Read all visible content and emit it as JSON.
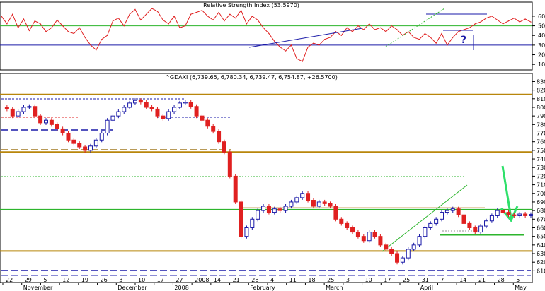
{
  "chart_data": [
    {
      "type": "line",
      "title": "Relative Strength Index (53.5970)",
      "ylim": [
        5,
        68
      ],
      "yticks": [
        "10",
        "20",
        "30",
        "40",
        "50",
        "60"
      ],
      "horizontal_lines": [
        {
          "value": 50,
          "color": "#2db52d"
        },
        {
          "value": 30,
          "color": "#1a1aa8"
        }
      ],
      "annotation": "?",
      "series": [
        {
          "color": "#e02020",
          "x": [
            0,
            2,
            4,
            6,
            8,
            10,
            12,
            14,
            16,
            18,
            20,
            22,
            24,
            26,
            28,
            30,
            32,
            34,
            36,
            38,
            40,
            42,
            44,
            46,
            48,
            50,
            52,
            54,
            56,
            58,
            60,
            62,
            64,
            66,
            68,
            70,
            72,
            74,
            76,
            78,
            80,
            82,
            84,
            86,
            88,
            90,
            92,
            94,
            96,
            98,
            100,
            102,
            104,
            106,
            108,
            110,
            112,
            114,
            116,
            118,
            120,
            122,
            124,
            126,
            128,
            130,
            132,
            134,
            136,
            138,
            140,
            142,
            144,
            146,
            148,
            150,
            152,
            154,
            156,
            158,
            160,
            162,
            164,
            166,
            168,
            170,
            172,
            174,
            176,
            178,
            180,
            182,
            184,
            186,
            188,
            190
          ],
          "values": [
            60,
            52,
            62,
            48,
            57,
            45,
            55,
            52,
            44,
            48,
            56,
            50,
            44,
            42,
            48,
            38,
            30,
            25,
            36,
            40,
            55,
            58,
            50,
            62,
            67,
            56,
            62,
            68,
            65,
            56,
            52,
            60,
            48,
            50,
            62,
            64,
            66,
            60,
            56,
            64,
            55,
            62,
            58,
            66,
            52,
            60,
            56,
            48,
            42,
            34,
            28,
            24,
            30,
            16,
            13,
            28,
            32,
            30,
            36,
            38,
            44,
            40,
            48,
            44,
            50,
            46,
            52,
            46,
            48,
            44,
            50,
            46,
            40,
            44,
            38,
            36,
            42,
            38,
            32,
            42,
            30,
            38,
            44,
            46,
            48,
            52,
            54,
            58,
            60,
            56,
            52,
            55,
            58,
            54,
            57,
            54
          ]
        }
      ]
    },
    {
      "type": "bar",
      "title": "^GDAXI (6,739.65, 6,780.34, 6,739.47, 6,754.87, +26.5700)",
      "ylim": [
        5980,
        8320
      ],
      "yticks": [
        "6100",
        "6200",
        "6300",
        "6400",
        "6500",
        "6600",
        "6700",
        "6800",
        "6900",
        "7000",
        "7100",
        "7200",
        "7300",
        "7400",
        "7500",
        "7600",
        "7700",
        "7800",
        "7900",
        "8000",
        "8100",
        "8200",
        "8300"
      ],
      "categories": [
        "22",
        "29",
        "5",
        "12",
        "19",
        "26",
        "3",
        "10",
        "17",
        "27",
        "2008",
        "14",
        "21",
        "28",
        "4",
        "11",
        "18",
        "25",
        "3",
        "10",
        "17",
        "25",
        "31",
        "7",
        "14",
        "21",
        "28",
        "5"
      ],
      "months": [
        "November",
        "December",
        "2008",
        "February",
        "March",
        "April",
        "May"
      ],
      "horizontal_lines": [
        {
          "value": 8150,
          "color": "#b8860b"
        },
        {
          "value": 7480,
          "color": "#b8860b"
        },
        {
          "value": 6810,
          "color": "#2db52d"
        },
        {
          "value": 6330,
          "color": "#b8860b"
        },
        {
          "value": 6520,
          "color": "#2db52d"
        }
      ],
      "series": [
        {
          "name": "",
          "x": [
            2,
            4,
            6,
            8,
            10,
            12,
            14,
            16,
            18,
            20,
            22,
            24,
            26,
            28,
            30,
            32,
            34,
            36,
            38,
            40,
            42,
            44,
            46,
            48,
            50,
            52,
            54,
            56,
            58,
            60,
            62,
            64,
            66,
            68,
            70,
            72,
            74,
            76,
            78,
            80,
            82,
            84,
            86,
            88,
            90,
            92,
            94,
            96,
            98,
            100,
            102,
            104,
            106,
            108,
            110,
            112,
            114,
            116,
            118,
            120,
            122,
            124,
            126,
            128,
            130,
            132,
            134,
            136,
            138,
            140,
            142,
            144,
            146,
            148,
            150,
            152,
            154,
            156,
            158,
            160,
            162,
            164,
            166,
            168,
            170,
            172,
            174,
            176,
            178,
            180,
            182,
            184,
            186,
            188,
            190
          ],
          "open": [
            8000,
            7980,
            7900,
            7950,
            8000,
            8010,
            7900,
            7820,
            7850,
            7800,
            7750,
            7700,
            7620,
            7580,
            7540,
            7500,
            7550,
            7620,
            7700,
            7850,
            7900,
            7950,
            8000,
            8050,
            8080,
            8060,
            8000,
            7980,
            7900,
            7870,
            7950,
            8000,
            8050,
            8060,
            8010,
            7900,
            7850,
            7780,
            7720,
            7600,
            7480,
            7200,
            6900,
            6500,
            6600,
            6700,
            6800,
            6850,
            6780,
            6820,
            6800,
            6850,
            6900,
            6950,
            7000,
            6920,
            6850,
            6900,
            6880,
            6850,
            6700,
            6650,
            6600,
            6550,
            6500,
            6450,
            6550,
            6500,
            6400,
            6350,
            6300,
            6200,
            6250,
            6350,
            6400,
            6500,
            6600,
            6650,
            6700,
            6780,
            6800,
            6820,
            6750,
            6650,
            6600,
            6550,
            6620,
            6680,
            6740,
            6800,
            6780,
            6750,
            6740,
            6760,
            6740
          ],
          "close": [
            7980,
            7900,
            7950,
            8000,
            8010,
            7900,
            7820,
            7850,
            7800,
            7750,
            7700,
            7620,
            7580,
            7540,
            7500,
            7550,
            7620,
            7700,
            7850,
            7900,
            7950,
            8000,
            8050,
            8080,
            8060,
            8000,
            7980,
            7900,
            7870,
            7950,
            8000,
            8050,
            8060,
            8010,
            7900,
            7850,
            7780,
            7720,
            7600,
            7480,
            7200,
            6900,
            6500,
            6600,
            6700,
            6800,
            6850,
            6780,
            6820,
            6800,
            6850,
            6900,
            6950,
            7000,
            6920,
            6850,
            6900,
            6880,
            6850,
            6700,
            6650,
            6600,
            6550,
            6500,
            6450,
            6550,
            6500,
            6400,
            6350,
            6300,
            6200,
            6250,
            6350,
            6400,
            6500,
            6600,
            6650,
            6700,
            6780,
            6800,
            6820,
            6750,
            6650,
            6600,
            6550,
            6620,
            6680,
            6740,
            6800,
            6780,
            6750,
            6740,
            6760,
            6740,
            6755
          ]
        }
      ]
    }
  ]
}
